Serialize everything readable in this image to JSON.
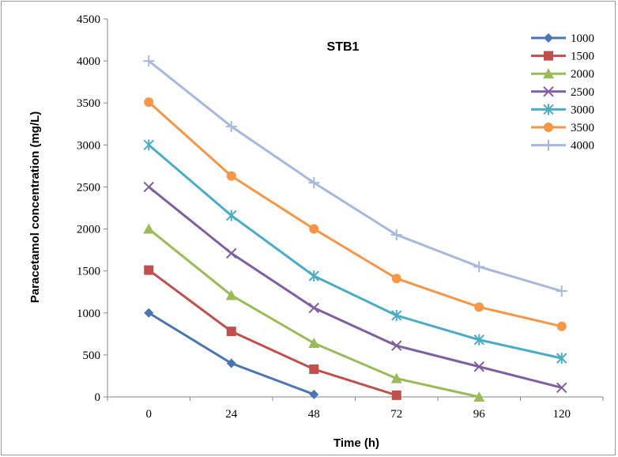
{
  "chart_data": {
    "type": "line",
    "title": "STB1",
    "xlabel": "Time (h)",
    "ylabel": "Paracetamol concentration (mg/L)",
    "categories": [
      "0",
      "24",
      "48",
      "72",
      "96",
      "120"
    ],
    "ylim": [
      0,
      4500
    ],
    "yticks": [
      0,
      500,
      1000,
      1500,
      2000,
      2500,
      3000,
      3500,
      4000,
      4500
    ],
    "grid": false,
    "legend_position": "right",
    "series": [
      {
        "name": "1000",
        "color": "#4a74b4",
        "marker": "diamond",
        "values": [
          1000,
          400,
          30,
          null,
          null,
          null
        ]
      },
      {
        "name": "1500",
        "color": "#c0504d",
        "marker": "square",
        "values": [
          1510,
          780,
          330,
          20,
          null,
          null
        ]
      },
      {
        "name": "2000",
        "color": "#9bbb59",
        "marker": "triangle",
        "values": [
          2000,
          1210,
          640,
          220,
          0,
          null
        ]
      },
      {
        "name": "2500",
        "color": "#7f5f9f",
        "marker": "x",
        "values": [
          2500,
          1710,
          1060,
          610,
          360,
          110
        ]
      },
      {
        "name": "3000",
        "color": "#4bacc6",
        "marker": "star",
        "values": [
          3000,
          2160,
          1440,
          970,
          680,
          460
        ]
      },
      {
        "name": "3500",
        "color": "#f79646",
        "marker": "circle",
        "values": [
          3510,
          2630,
          2000,
          1410,
          1070,
          840
        ]
      },
      {
        "name": "4000",
        "color": "#a6b9dc",
        "marker": "plus",
        "values": [
          4000,
          3220,
          2550,
          1930,
          1550,
          1260
        ]
      }
    ]
  }
}
